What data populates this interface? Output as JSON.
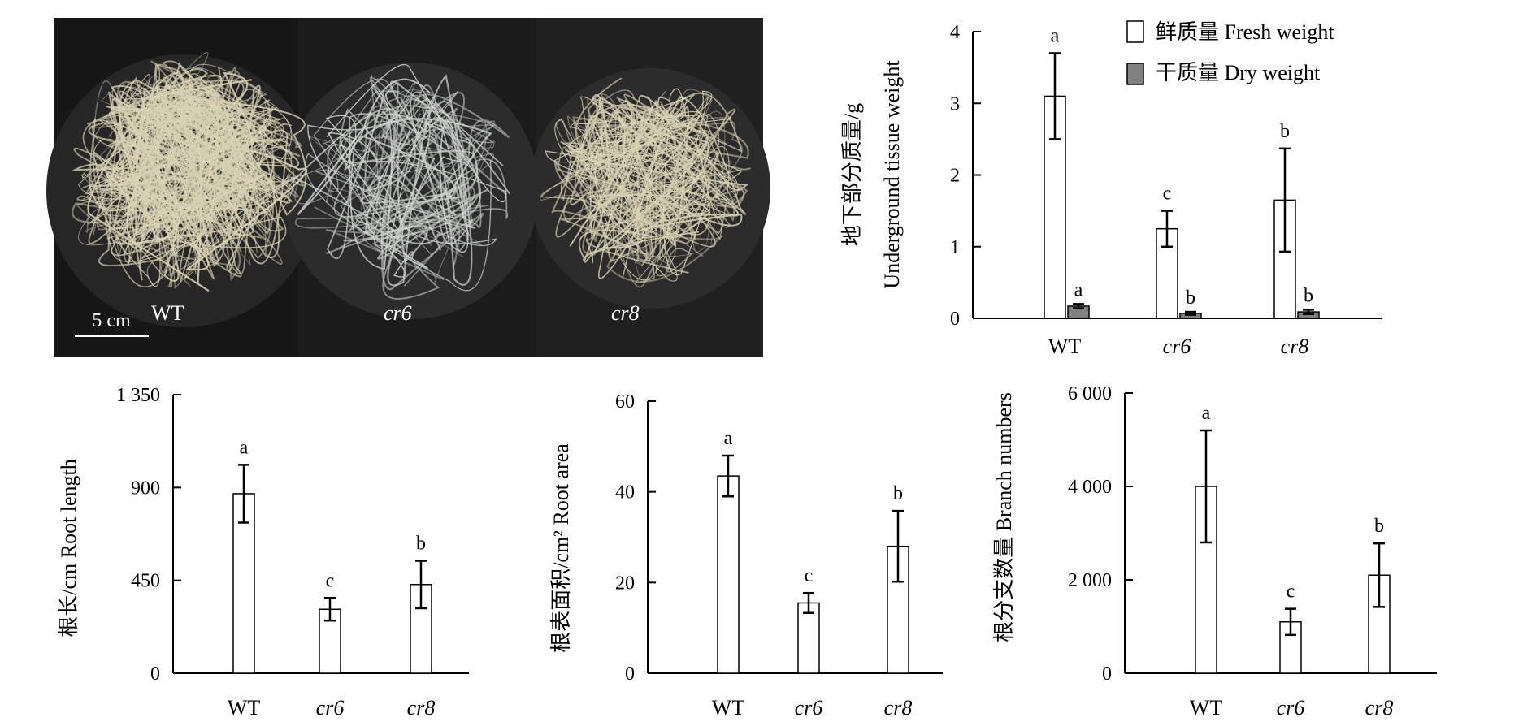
{
  "photo": {
    "scale_label": "5 cm",
    "labels": [
      "WT",
      "cr6",
      "cr8"
    ]
  },
  "colors": {
    "fresh_fill": "#ffffff",
    "dry_fill": "#808080",
    "bar_fill": "#ffffff",
    "photo_bg": "#1b1b1b",
    "root_color": "#d9d2b4"
  },
  "chart_data": [
    {
      "type": "bar",
      "categories": [
        "WT",
        "cr6",
        "cr8"
      ],
      "ylabel_cn": "地下部分质量/g",
      "ylabel_en": "Underground tissue weight",
      "ylim": [
        0,
        4
      ],
      "yticks": [
        0,
        1,
        2,
        3,
        4
      ],
      "ytick_labels": [
        "0",
        "1",
        "2",
        "3",
        "4"
      ],
      "legend_position": "top-right",
      "grid": false,
      "series": [
        {
          "name": "鲜质量  Fresh weight",
          "values": [
            3.1,
            1.25,
            1.65
          ],
          "errors": [
            0.6,
            0.25,
            0.72
          ],
          "letters": [
            "a",
            "c",
            "b"
          ]
        },
        {
          "name": "干质量  Dry weight",
          "values": [
            0.17,
            0.07,
            0.09
          ],
          "errors": [
            0.03,
            0.02,
            0.03
          ],
          "letters": [
            "a",
            "b",
            "b"
          ]
        }
      ]
    },
    {
      "type": "bar",
      "categories": [
        "WT",
        "cr6",
        "cr8"
      ],
      "ylabel": "根长/cm  Root length",
      "ylim": [
        0,
        1350
      ],
      "yticks": [
        0,
        450,
        900,
        1350
      ],
      "ytick_labels": [
        "0",
        "450",
        "900",
        "1 350"
      ],
      "grid": false,
      "values": [
        870,
        310,
        430
      ],
      "errors": [
        140,
        55,
        115
      ],
      "letters": [
        "a",
        "c",
        "b"
      ]
    },
    {
      "type": "bar",
      "categories": [
        "WT",
        "cr6",
        "cr8"
      ],
      "ylabel": "根表面积/cm²  Root area",
      "ylim": [
        0,
        60
      ],
      "yticks": [
        0,
        20,
        40,
        60
      ],
      "ytick_labels": [
        "0",
        "20",
        "40",
        "60"
      ],
      "grid": false,
      "values": [
        43.5,
        15.5,
        28
      ],
      "errors": [
        4.5,
        2.2,
        7.8
      ],
      "letters": [
        "a",
        "c",
        "b"
      ]
    },
    {
      "type": "bar",
      "categories": [
        "WT",
        "cr6",
        "cr8"
      ],
      "ylabel": "根分支数量  Branch numbers",
      "ylim": [
        0,
        6000
      ],
      "yticks": [
        0,
        2000,
        4000,
        6000
      ],
      "ytick_labels": [
        "0",
        "2 000",
        "4 000",
        "6 000"
      ],
      "grid": false,
      "values": [
        4000,
        1100,
        2100
      ],
      "errors": [
        1200,
        280,
        680
      ],
      "letters": [
        "a",
        "c",
        "b"
      ]
    }
  ]
}
